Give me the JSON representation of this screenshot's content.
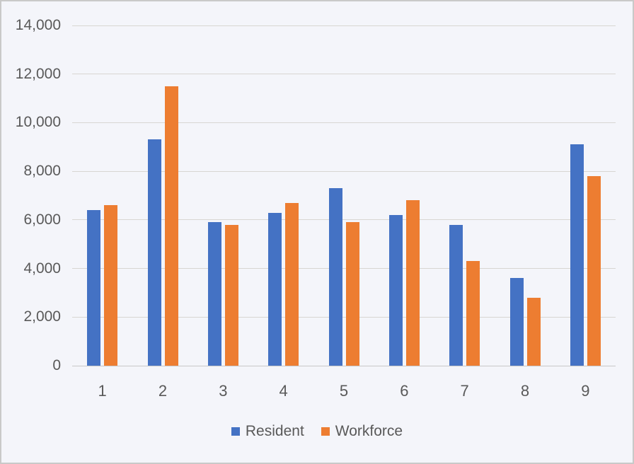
{
  "chart_data": {
    "type": "bar",
    "title": "",
    "xlabel": "",
    "ylabel": "",
    "categories": [
      "1",
      "2",
      "3",
      "4",
      "5",
      "6",
      "7",
      "8",
      "9"
    ],
    "series": [
      {
        "name": "Resident",
        "color": "#4472C4",
        "values": [
          6400,
          9300,
          5900,
          6300,
          7300,
          6200,
          5800,
          3600,
          9100
        ]
      },
      {
        "name": "Workforce",
        "color": "#ED7D31",
        "values": [
          6600,
          11500,
          5800,
          6700,
          5900,
          6800,
          4300,
          2800,
          7800
        ]
      }
    ],
    "ylim": [
      0,
      14000
    ],
    "y_tick_values": [
      0,
      2000,
      4000,
      6000,
      8000,
      10000,
      12000,
      14000
    ],
    "y_tick_labels": [
      "0",
      "2,000",
      "4,000",
      "6,000",
      "8,000",
      "10,000",
      "12,000",
      "14,000"
    ],
    "grid": true,
    "legend_position": "bottom"
  },
  "colors": {
    "background": "#f4f5fa",
    "frame_border": "#c9c9c9",
    "gridline": "#d8d6d2",
    "axis_line": "#c8c8c8",
    "text": "#595959"
  }
}
